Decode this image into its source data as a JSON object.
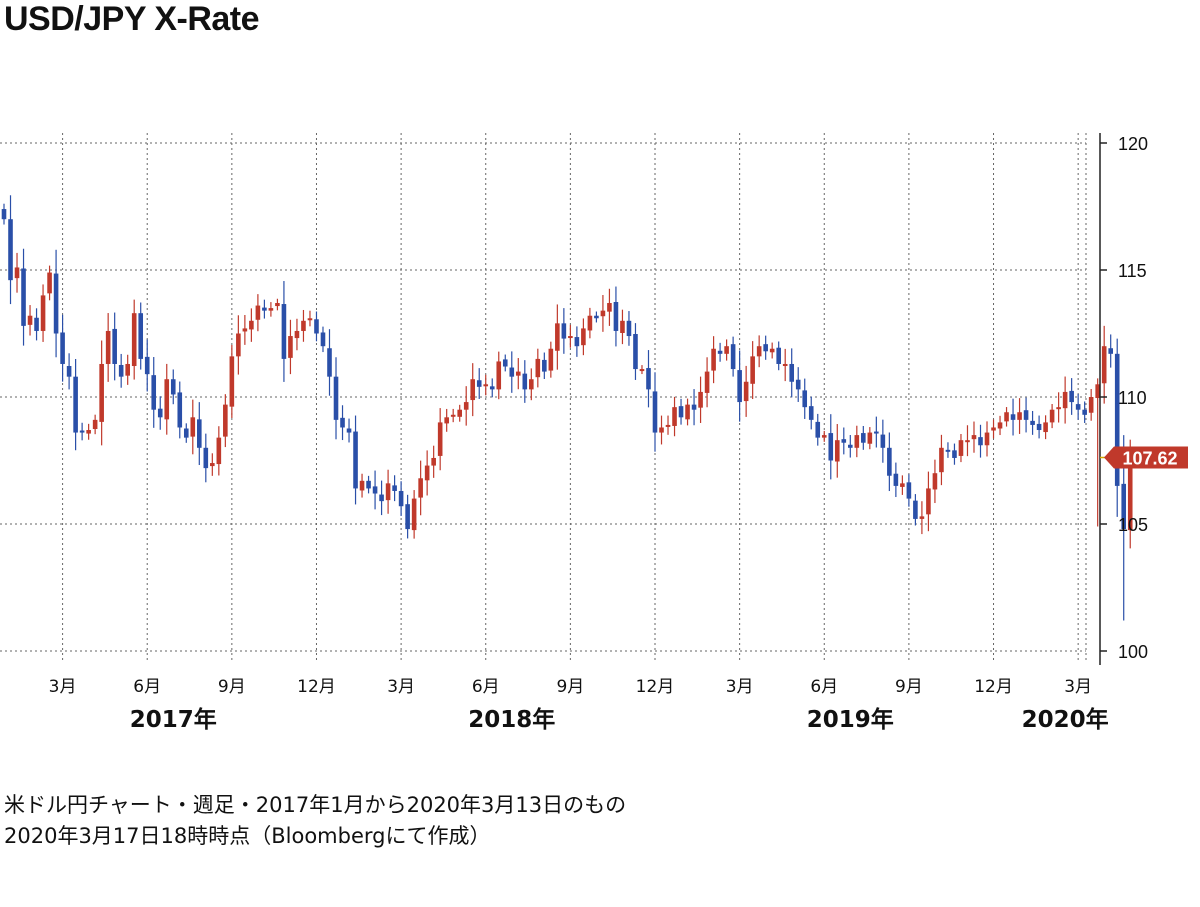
{
  "page": {
    "title": "USD/JPY X-Rate",
    "caption_line1": "米ドル円チャート・週足・2017年1月から2020年3月13日のもの",
    "caption_line2": "2020年3月17日18時時点（Bloombergにて作成）"
  },
  "chart_data": {
    "type": "candlestick",
    "title": "USD/JPY X-Rate",
    "y_range": [
      100,
      120
    ],
    "y_ticks": [
      100,
      105,
      110,
      115,
      120
    ],
    "x_month_ticks": [
      {
        "label": "3月",
        "week": 9
      },
      {
        "label": "6月",
        "week": 22
      },
      {
        "label": "9月",
        "week": 35
      },
      {
        "label": "12月",
        "week": 48
      },
      {
        "label": "3月",
        "week": 61
      },
      {
        "label": "6月",
        "week": 74
      },
      {
        "label": "9月",
        "week": 87
      },
      {
        "label": "12月",
        "week": 100
      },
      {
        "label": "3月",
        "week": 113
      },
      {
        "label": "6月",
        "week": 126
      },
      {
        "label": "9月",
        "week": 139
      },
      {
        "label": "12月",
        "week": 152
      },
      {
        "label": "3月",
        "week": 165
      }
    ],
    "year_labels": [
      {
        "label": "2017年",
        "week": 26
      },
      {
        "label": "2018年",
        "week": 78
      },
      {
        "label": "2019年",
        "week": 130
      },
      {
        "label": "2020年",
        "week": 163
      }
    ],
    "last_price": 107.62,
    "last_price_label": "107.62",
    "colors": {
      "up": "#c0392b",
      "down": "#2a4fa8",
      "label_bg": "#c0392b"
    },
    "series_close": [
      117.0,
      114.6,
      115.1,
      112.8,
      113.2,
      112.6,
      114.0,
      114.9,
      112.5,
      111.3,
      110.8,
      108.6,
      108.6,
      108.7,
      109.1,
      111.3,
      112.6,
      111.3,
      110.8,
      111.3,
      113.3,
      111.5,
      110.9,
      109.5,
      109.2,
      110.7,
      110.1,
      108.8,
      108.4,
      109.2,
      108.0,
      107.2,
      107.4,
      108.4,
      109.7,
      111.6,
      112.5,
      112.7,
      113.0,
      113.6,
      113.4,
      113.5,
      113.7,
      111.5,
      112.4,
      112.6,
      113.0,
      113.1,
      112.5,
      112.0,
      110.8,
      109.1,
      108.8,
      108.6,
      106.4,
      106.7,
      106.4,
      106.2,
      105.9,
      106.6,
      106.3,
      105.7,
      104.8,
      106.0,
      106.8,
      107.3,
      107.6,
      109.0,
      109.2,
      109.3,
      109.5,
      109.8,
      110.7,
      110.4,
      110.5,
      110.3,
      111.4,
      111.2,
      110.8,
      111.0,
      110.3,
      110.7,
      111.5,
      111.0,
      111.9,
      112.9,
      112.3,
      112.4,
      112.0,
      112.7,
      113.2,
      113.1,
      113.4,
      113.7,
      112.6,
      113.0,
      112.4,
      111.1,
      111.1,
      110.3,
      108.6,
      108.8,
      108.9,
      109.6,
      109.2,
      109.7,
      109.5,
      110.2,
      111.0,
      111.9,
      111.7,
      112.0,
      111.1,
      109.8,
      110.6,
      111.6,
      112.0,
      111.8,
      111.9,
      111.3,
      111.3,
      110.6,
      110.3,
      109.6,
      109.1,
      108.4,
      108.5,
      107.5,
      108.3,
      108.2,
      108.0,
      108.5,
      108.2,
      108.6,
      108.6,
      108.0,
      106.9,
      106.5,
      106.6,
      106.0,
      105.2,
      105.3,
      106.4,
      107.0,
      108.0,
      107.9,
      107.6,
      108.3,
      108.3,
      108.5,
      108.1,
      108.6,
      108.8,
      109.0,
      109.4,
      109.1,
      109.4,
      109.1,
      108.9,
      108.7,
      109.0,
      109.5,
      109.6,
      110.2,
      109.8,
      109.5,
      109.3,
      110.0,
      110.5,
      112.0,
      111.7,
      106.5,
      104.8,
      107.6
    ]
  }
}
